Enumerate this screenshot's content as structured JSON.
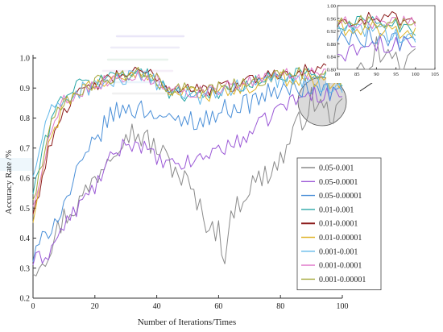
{
  "chart_data": {
    "type": "line",
    "xlabel": "Number of Iterations/Times",
    "ylabel": "Accuracy Rate /%",
    "xlim": [
      0,
      100
    ],
    "ylim": [
      0.2,
      1.0
    ],
    "x_ticks": [
      "0",
      "20",
      "40",
      "60",
      "80",
      "100"
    ],
    "y_ticks": [
      "0.2",
      "0.3",
      "0.4",
      "0.5",
      "0.6",
      "0.7",
      "0.8",
      "0.9",
      "1.0"
    ],
    "legend_position": "bottom-right",
    "grid": false,
    "series": [
      {
        "name": "0.05-0.001",
        "color": "#8a8a8a",
        "anchors": [
          [
            0,
            0.3
          ],
          [
            5,
            0.36
          ],
          [
            10,
            0.47
          ],
          [
            15,
            0.52
          ],
          [
            20,
            0.6
          ],
          [
            25,
            0.69
          ],
          [
            30,
            0.76
          ],
          [
            35,
            0.74
          ],
          [
            40,
            0.7
          ],
          [
            45,
            0.64
          ],
          [
            50,
            0.58
          ],
          [
            55,
            0.47
          ],
          [
            60,
            0.42
          ],
          [
            62,
            0.35
          ],
          [
            65,
            0.5
          ],
          [
            70,
            0.57
          ],
          [
            75,
            0.61
          ],
          [
            80,
            0.66
          ],
          [
            85,
            0.76
          ],
          [
            90,
            0.86
          ],
          [
            95,
            0.82
          ],
          [
            100,
            0.82
          ]
        ],
        "noise": 0.045
      },
      {
        "name": "0.05-0.0001",
        "color": "#9b59d6",
        "anchors": [
          [
            0,
            0.32
          ],
          [
            5,
            0.35
          ],
          [
            10,
            0.44
          ],
          [
            15,
            0.51
          ],
          [
            20,
            0.57
          ],
          [
            25,
            0.66
          ],
          [
            30,
            0.72
          ],
          [
            35,
            0.71
          ],
          [
            40,
            0.66
          ],
          [
            45,
            0.64
          ],
          [
            50,
            0.65
          ],
          [
            55,
            0.67
          ],
          [
            60,
            0.7
          ],
          [
            65,
            0.71
          ],
          [
            70,
            0.75
          ],
          [
            75,
            0.79
          ],
          [
            80,
            0.84
          ],
          [
            85,
            0.86
          ],
          [
            90,
            0.88
          ],
          [
            95,
            0.88
          ],
          [
            100,
            0.88
          ]
        ],
        "noise": 0.028
      },
      {
        "name": "0.05-0.00001",
        "color": "#4a8fd8",
        "anchors": [
          [
            0,
            0.33
          ],
          [
            5,
            0.43
          ],
          [
            10,
            0.51
          ],
          [
            15,
            0.63
          ],
          [
            20,
            0.72
          ],
          [
            25,
            0.81
          ],
          [
            30,
            0.83
          ],
          [
            35,
            0.83
          ],
          [
            40,
            0.82
          ],
          [
            45,
            0.78
          ],
          [
            50,
            0.8
          ],
          [
            55,
            0.79
          ],
          [
            60,
            0.82
          ],
          [
            65,
            0.84
          ],
          [
            70,
            0.85
          ],
          [
            75,
            0.88
          ],
          [
            80,
            0.89
          ],
          [
            85,
            0.9
          ],
          [
            90,
            0.9
          ],
          [
            95,
            0.89
          ],
          [
            100,
            0.88
          ]
        ],
        "noise": 0.035
      },
      {
        "name": "0.01-0.001",
        "color": "#2aa7a7",
        "anchors": [
          [
            0,
            0.55
          ],
          [
            3,
            0.68
          ],
          [
            6,
            0.8
          ],
          [
            10,
            0.88
          ],
          [
            15,
            0.91
          ],
          [
            20,
            0.92
          ],
          [
            25,
            0.94
          ],
          [
            30,
            0.95
          ],
          [
            35,
            0.95
          ],
          [
            40,
            0.93
          ],
          [
            45,
            0.88
          ],
          [
            50,
            0.88
          ],
          [
            55,
            0.89
          ],
          [
            60,
            0.88
          ],
          [
            65,
            0.9
          ],
          [
            70,
            0.91
          ],
          [
            75,
            0.93
          ],
          [
            80,
            0.94
          ],
          [
            85,
            0.95
          ],
          [
            90,
            0.95
          ],
          [
            95,
            0.94
          ],
          [
            100,
            0.93
          ]
        ],
        "noise": 0.025
      },
      {
        "name": "0.01-0.0001",
        "color": "#8b1a1a",
        "anchors": [
          [
            0,
            0.48
          ],
          [
            3,
            0.6
          ],
          [
            6,
            0.73
          ],
          [
            10,
            0.83
          ],
          [
            15,
            0.88
          ],
          [
            20,
            0.91
          ],
          [
            25,
            0.93
          ],
          [
            30,
            0.95
          ],
          [
            35,
            0.95
          ],
          [
            40,
            0.94
          ],
          [
            45,
            0.89
          ],
          [
            50,
            0.91
          ],
          [
            55,
            0.89
          ],
          [
            60,
            0.9
          ],
          [
            65,
            0.91
          ],
          [
            70,
            0.93
          ],
          [
            75,
            0.94
          ],
          [
            80,
            0.95
          ],
          [
            85,
            0.96
          ],
          [
            90,
            0.96
          ],
          [
            95,
            0.96
          ],
          [
            100,
            0.95
          ]
        ],
        "noise": 0.022
      },
      {
        "name": "0.01-0.00001",
        "color": "#e0b42a",
        "anchors": [
          [
            0,
            0.45
          ],
          [
            3,
            0.62
          ],
          [
            6,
            0.74
          ],
          [
            10,
            0.84
          ],
          [
            15,
            0.89
          ],
          [
            20,
            0.91
          ],
          [
            25,
            0.93
          ],
          [
            30,
            0.94
          ],
          [
            35,
            0.94
          ],
          [
            40,
            0.93
          ],
          [
            45,
            0.88
          ],
          [
            50,
            0.89
          ],
          [
            55,
            0.88
          ],
          [
            60,
            0.88
          ],
          [
            65,
            0.89
          ],
          [
            70,
            0.9
          ],
          [
            75,
            0.92
          ],
          [
            80,
            0.93
          ],
          [
            85,
            0.93
          ],
          [
            90,
            0.93
          ],
          [
            95,
            0.92
          ],
          [
            100,
            0.92
          ]
        ],
        "noise": 0.025
      },
      {
        "name": "0.001-0.001",
        "color": "#62b8ea",
        "anchors": [
          [
            0,
            0.6
          ],
          [
            3,
            0.74
          ],
          [
            6,
            0.82
          ],
          [
            10,
            0.86
          ],
          [
            15,
            0.89
          ],
          [
            20,
            0.91
          ],
          [
            25,
            0.92
          ],
          [
            30,
            0.93
          ],
          [
            35,
            0.93
          ],
          [
            40,
            0.92
          ],
          [
            45,
            0.89
          ],
          [
            50,
            0.88
          ],
          [
            55,
            0.87
          ],
          [
            60,
            0.89
          ],
          [
            65,
            0.9
          ],
          [
            70,
            0.91
          ],
          [
            75,
            0.92
          ],
          [
            80,
            0.93
          ],
          [
            85,
            0.93
          ],
          [
            90,
            0.92
          ],
          [
            95,
            0.91
          ],
          [
            100,
            0.91
          ]
        ],
        "noise": 0.028
      },
      {
        "name": "0.001-0.0001",
        "color": "#e07acb",
        "anchors": [
          [
            0,
            0.5
          ],
          [
            3,
            0.64
          ],
          [
            6,
            0.76
          ],
          [
            10,
            0.86
          ],
          [
            15,
            0.89
          ],
          [
            20,
            0.91
          ],
          [
            25,
            0.93
          ],
          [
            30,
            0.94
          ],
          [
            35,
            0.94
          ],
          [
            40,
            0.93
          ],
          [
            45,
            0.9
          ],
          [
            50,
            0.89
          ],
          [
            55,
            0.89
          ],
          [
            60,
            0.89
          ],
          [
            65,
            0.91
          ],
          [
            70,
            0.92
          ],
          [
            75,
            0.93
          ],
          [
            80,
            0.94
          ],
          [
            85,
            0.95
          ],
          [
            90,
            0.95
          ],
          [
            95,
            0.95
          ],
          [
            100,
            0.94
          ]
        ],
        "noise": 0.022
      },
      {
        "name": "0.001-0.00001",
        "color": "#a4a83a",
        "anchors": [
          [
            0,
            0.52
          ],
          [
            3,
            0.66
          ],
          [
            6,
            0.78
          ],
          [
            10,
            0.85
          ],
          [
            15,
            0.89
          ],
          [
            20,
            0.92
          ],
          [
            25,
            0.93
          ],
          [
            30,
            0.94
          ],
          [
            35,
            0.95
          ],
          [
            40,
            0.93
          ],
          [
            45,
            0.89
          ],
          [
            50,
            0.9
          ],
          [
            55,
            0.89
          ],
          [
            60,
            0.9
          ],
          [
            65,
            0.91
          ],
          [
            70,
            0.92
          ],
          [
            75,
            0.93
          ],
          [
            80,
            0.94
          ],
          [
            85,
            0.95
          ],
          [
            90,
            0.95
          ],
          [
            95,
            0.95
          ],
          [
            100,
            0.94
          ]
        ],
        "noise": 0.022
      }
    ],
    "inset": {
      "xlim": [
        80,
        105
      ],
      "ylim": [
        0.8,
        1.0
      ],
      "x_ticks": [
        "80",
        "85",
        "90",
        "95",
        "100",
        "105"
      ],
      "y_ticks": [
        "0.80",
        "0.84",
        "0.88",
        "0.92",
        "0.96",
        "1.00"
      ]
    }
  }
}
